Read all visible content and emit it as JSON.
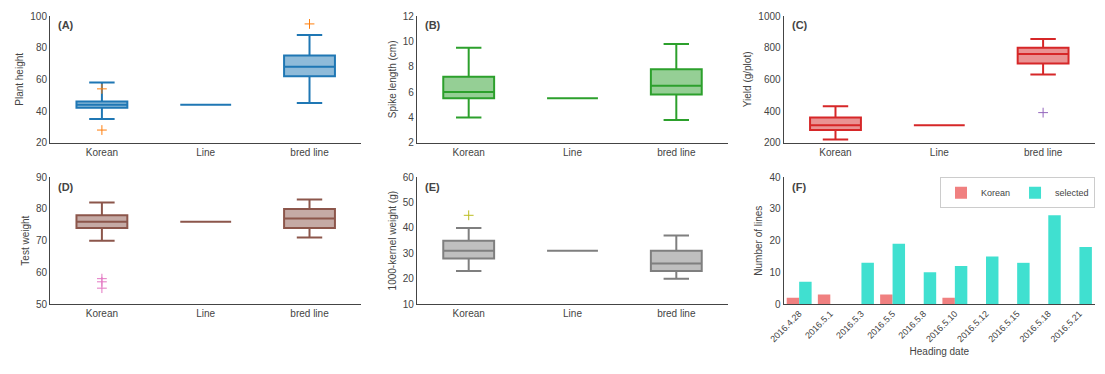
{
  "chart_data": [
    {
      "type": "box",
      "title": "(A)",
      "ylabel": "Plant height",
      "categories": [
        "Korean",
        "Line",
        "bred line"
      ],
      "boxes": [
        {
          "whislo": 35,
          "q1": 42,
          "med": 44,
          "q3": 46,
          "whishi": 58,
          "fliers": [
            28,
            54
          ]
        },
        {
          "whislo": 44,
          "q1": 44,
          "med": 44,
          "q3": 44,
          "whishi": 44,
          "fliers": []
        },
        {
          "whislo": 45,
          "q1": 62,
          "med": 68,
          "q3": 75,
          "whishi": 88,
          "fliers": [
            95
          ]
        }
      ],
      "ylim": [
        20,
        100
      ],
      "yticks": [
        20,
        40,
        60,
        80,
        100
      ],
      "grid": false
    },
    {
      "type": "box",
      "title": "(B)",
      "ylabel": "Spike length (cm)",
      "categories": [
        "Korean",
        "Line",
        "bred line"
      ],
      "boxes": [
        {
          "whislo": 4.0,
          "q1": 5.5,
          "med": 6.0,
          "q3": 7.2,
          "whishi": 9.5,
          "fliers": []
        },
        {
          "whislo": 5.5,
          "q1": 5.5,
          "med": 5.5,
          "q3": 5.5,
          "whishi": 5.5,
          "fliers": []
        },
        {
          "whislo": 3.8,
          "q1": 5.8,
          "med": 6.5,
          "q3": 7.8,
          "whishi": 9.8,
          "fliers": []
        }
      ],
      "ylim": [
        2,
        12
      ],
      "yticks": [
        2,
        4,
        6,
        8,
        10,
        12
      ],
      "grid": false
    },
    {
      "type": "box",
      "title": "(C)",
      "ylabel": "Yield (g/plot)",
      "categories": [
        "Korean",
        "Line",
        "bred line"
      ],
      "boxes": [
        {
          "whislo": 220,
          "q1": 280,
          "med": 310,
          "q3": 360,
          "whishi": 430,
          "fliers": []
        },
        {
          "whislo": 310,
          "q1": 310,
          "med": 310,
          "q3": 310,
          "whishi": 310,
          "fliers": []
        },
        {
          "whislo": 630,
          "q1": 700,
          "med": 760,
          "q3": 800,
          "whishi": 855,
          "fliers": [
            390
          ]
        }
      ],
      "ylim": [
        200,
        1000
      ],
      "yticks": [
        200,
        400,
        600,
        800,
        1000
      ],
      "grid": false
    },
    {
      "type": "box",
      "title": "(D)",
      "ylabel": "Test weight",
      "categories": [
        "Korean",
        "Line",
        "bred line"
      ],
      "boxes": [
        {
          "whislo": 70,
          "q1": 74,
          "med": 76,
          "q3": 78,
          "whishi": 82,
          "fliers": [
            55,
            57,
            58
          ]
        },
        {
          "whislo": 76,
          "q1": 76,
          "med": 76,
          "q3": 76,
          "whishi": 76,
          "fliers": []
        },
        {
          "whislo": 71,
          "q1": 74,
          "med": 77,
          "q3": 80,
          "whishi": 83,
          "fliers": []
        }
      ],
      "ylim": [
        50,
        90
      ],
      "yticks": [
        50,
        60,
        70,
        80,
        90
      ],
      "grid": false
    },
    {
      "type": "box",
      "title": "(E)",
      "ylabel": "1000-kernel weight (g)",
      "categories": [
        "Korean",
        "Line",
        "bred line"
      ],
      "boxes": [
        {
          "whislo": 23,
          "q1": 28,
          "med": 31,
          "q3": 35,
          "whishi": 40,
          "fliers": [
            45
          ]
        },
        {
          "whislo": 31,
          "q1": 31,
          "med": 31,
          "q3": 31,
          "whishi": 31,
          "fliers": []
        },
        {
          "whislo": 20,
          "q1": 23,
          "med": 26,
          "q3": 31,
          "whishi": 37,
          "fliers": []
        }
      ],
      "ylim": [
        10,
        60
      ],
      "yticks": [
        10,
        20,
        30,
        40,
        50,
        60
      ],
      "grid": false
    },
    {
      "type": "bar",
      "title": "(F)",
      "xlabel": "Heading date",
      "ylabel": "Number of lines",
      "categories": [
        "2016.4.28",
        "2016.5.1",
        "2016.5.3",
        "2016.5.5",
        "2016.5.8",
        "2016.5.10",
        "2016.5.12",
        "2016.5.15",
        "2016.5.18",
        "2016.5.21"
      ],
      "series": [
        {
          "name": "Korean",
          "color": "#F08080",
          "values": [
            2,
            3,
            0,
            3,
            0,
            2,
            0,
            0,
            0,
            0
          ]
        },
        {
          "name": "selected",
          "color": "#40E0D0",
          "values": [
            7,
            0,
            13,
            19,
            10,
            12,
            15,
            13,
            28,
            18
          ]
        }
      ],
      "ylim": [
        0,
        40
      ],
      "yticks": [
        0,
        10,
        20,
        30,
        40
      ],
      "grid": false,
      "legend": "upper right"
    }
  ]
}
